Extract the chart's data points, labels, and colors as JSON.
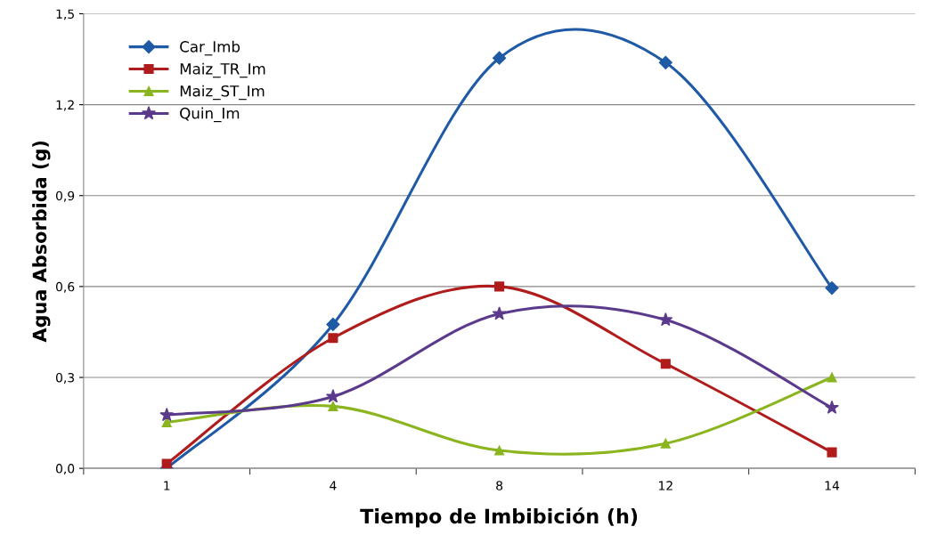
{
  "chart_data": {
    "type": "line",
    "xlabel": "Tiempo de Imbibición (h)",
    "ylabel": "Agua Absorbida (g)",
    "categories": [
      "1",
      "4",
      "8",
      "12",
      "14"
    ],
    "series": [
      {
        "name": "Car_Imb",
        "color": "#1f5aa6",
        "marker": "diamond",
        "values": [
          0.0,
          0.475,
          1.354,
          1.339,
          0.595
        ]
      },
      {
        "name": "Maiz_TR_Im",
        "color": "#b01c1c",
        "marker": "square",
        "values": [
          0.015,
          0.43,
          0.6,
          0.345,
          0.053
        ]
      },
      {
        "name": "Maiz_ST_Im",
        "color": "#8ab51e",
        "marker": "triangle",
        "values": [
          0.152,
          0.205,
          0.059,
          0.082,
          0.3
        ]
      },
      {
        "name": "Quin_Im",
        "color": "#5b3a8c",
        "marker": "star",
        "values": [
          0.176,
          0.237,
          0.51,
          0.49,
          0.2
        ]
      }
    ],
    "ylim": [
      0,
      1.5
    ],
    "yticks": [
      {
        "value": 0,
        "label": "0,0"
      },
      {
        "value": 0.3,
        "label": "0,3"
      },
      {
        "value": 0.6,
        "label": "0,6"
      },
      {
        "value": 0.9,
        "label": "0,9"
      },
      {
        "value": 1.2,
        "label": "1,2"
      },
      {
        "value": 1.5,
        "label": "1,5"
      }
    ],
    "grid": "y",
    "legend": "top left",
    "line_style": "solid"
  }
}
